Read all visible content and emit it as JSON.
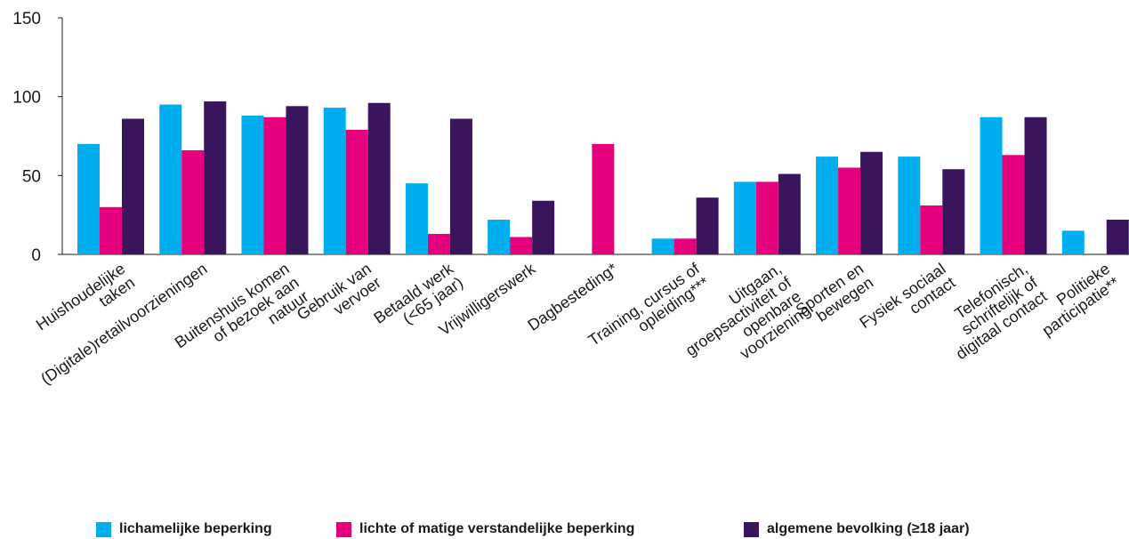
{
  "chart_data": {
    "type": "bar",
    "ylim": [
      0,
      150
    ],
    "yticks": [
      "0",
      "50",
      "100",
      "150"
    ],
    "ytick_values": [
      0,
      50,
      100,
      150
    ],
    "grid": false,
    "legend_position": "bottom",
    "categories": [
      [
        "Huishoudelijke",
        "taken"
      ],
      [
        "(Digitale)retailvoorzieningen"
      ],
      [
        "Buitenshuis komen",
        "of bezoek aan",
        "natuur"
      ],
      [
        "Gebruik van",
        "vervoer"
      ],
      [
        "Betaald werk",
        "(<65 jaar)"
      ],
      [
        "Vrijwilligerswerk"
      ],
      [
        "Dagbesteding*"
      ],
      [
        "Training, cursus of",
        "opleiding***"
      ],
      [
        "Uitgaan,",
        "groepsactiviteit of",
        "openbare",
        "voorziening"
      ],
      [
        "Sporten en",
        "bewegen"
      ],
      [
        "Fysiek sociaal",
        "contact"
      ],
      [
        "Telefonisch,",
        "schriftelijk of",
        "digitaal contact"
      ],
      [
        "Politieke",
        "participatie**"
      ]
    ],
    "series": [
      {
        "name": "lichamelijke beperking",
        "color": "#00aeef",
        "values": [
          70,
          95,
          88,
          93,
          45,
          22,
          null,
          10,
          46,
          62,
          62,
          87,
          15
        ]
      },
      {
        "name": "lichte of matige verstandelijke beperking",
        "color": "#e5007d",
        "values": [
          30,
          66,
          87,
          79,
          13,
          11,
          70,
          10,
          46,
          55,
          31,
          63,
          null
        ]
      },
      {
        "name": "algemene bevolking (≥18 jaar)",
        "color": "#3b145e",
        "values": [
          86,
          97,
          94,
          96,
          86,
          34,
          null,
          36,
          51,
          65,
          54,
          87,
          22
        ]
      }
    ]
  }
}
